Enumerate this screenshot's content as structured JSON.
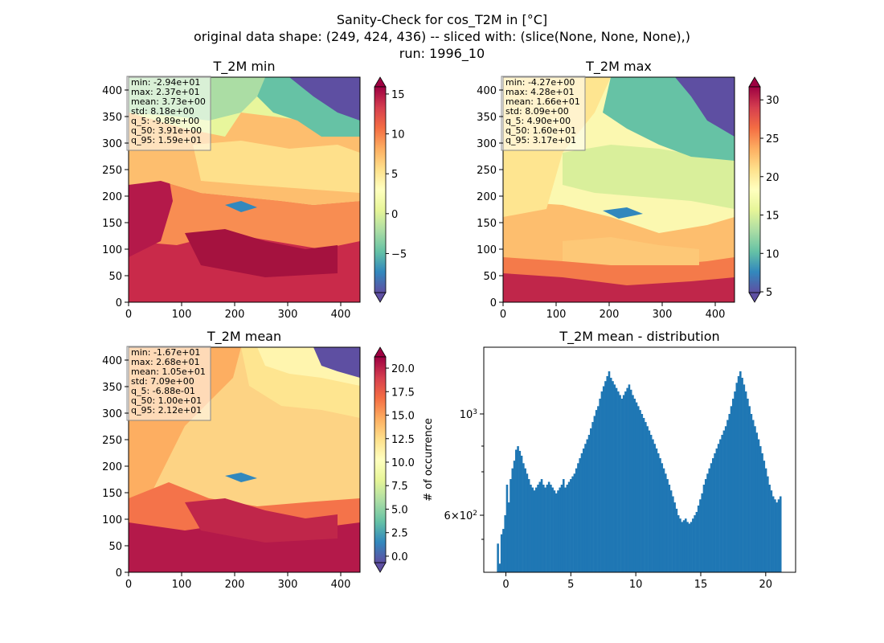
{
  "figure": {
    "suptitle_lines": [
      "Sanity-Check for cos_T2M in [°C]",
      "original data shape: (249, 424, 436) -- sliced with: (slice(None, None, None),)",
      "run: 1996_10"
    ]
  },
  "chart_data": [
    {
      "type": "heatmap",
      "title": "T_2M min",
      "xlim": [
        0,
        436
      ],
      "ylim": [
        0,
        424
      ],
      "xticks": [
        "0",
        "100",
        "200",
        "300",
        "400"
      ],
      "yticks": [
        "0",
        "50",
        "100",
        "150",
        "200",
        "250",
        "300",
        "350",
        "400"
      ],
      "colormap": "Spectral_r",
      "colorbar": {
        "range": [
          -9.89,
          15.9
        ],
        "ticks": [
          "−5",
          "0",
          "5",
          "10",
          "15"
        ],
        "tick_values": [
          -5,
          0,
          5,
          10,
          15
        ],
        "extend": "both"
      },
      "stats": [
        "min: -2.94e+01",
        "max: 2.37e+01",
        "mean: 3.73e+00",
        "std: 8.18e+00",
        "q_5: -9.89e+00",
        "q_50: 3.91e+00",
        "q_95: 1.59e+01"
      ]
    },
    {
      "type": "heatmap",
      "title": "T_2M max",
      "xlim": [
        0,
        436
      ],
      "ylim": [
        0,
        424
      ],
      "xticks": [
        "0",
        "100",
        "200",
        "300",
        "400"
      ],
      "yticks": [
        "0",
        "50",
        "100",
        "150",
        "200",
        "250",
        "300",
        "350",
        "400"
      ],
      "colormap": "Spectral_r",
      "colorbar": {
        "range": [
          4.9,
          31.7
        ],
        "ticks": [
          "5",
          "10",
          "15",
          "20",
          "25",
          "30"
        ],
        "tick_values": [
          5,
          10,
          15,
          20,
          25,
          30
        ],
        "extend": "both"
      },
      "stats": [
        "min: -4.27e+00",
        "max: 4.28e+01",
        "mean: 1.66e+01",
        "std: 8.09e+00",
        "q_5: 4.90e+00",
        "q_50: 1.60e+01",
        "q_95: 3.17e+01"
      ]
    },
    {
      "type": "heatmap",
      "title": "T_2M mean",
      "xlim": [
        0,
        436
      ],
      "ylim": [
        0,
        424
      ],
      "xticks": [
        "0",
        "100",
        "200",
        "300",
        "400"
      ],
      "yticks": [
        "0",
        "50",
        "100",
        "150",
        "200",
        "250",
        "300",
        "350",
        "400"
      ],
      "colormap": "Spectral_r",
      "colorbar": {
        "range": [
          -0.688,
          21.2
        ],
        "ticks": [
          "0.0",
          "2.5",
          "5.0",
          "7.5",
          "10.0",
          "12.5",
          "15.0",
          "17.5",
          "20.0"
        ],
        "tick_values": [
          0,
          2.5,
          5,
          7.5,
          10,
          12.5,
          15,
          17.5,
          20
        ],
        "extend": "both"
      },
      "stats": [
        "min: -1.67e+01",
        "max: 2.68e+01",
        "mean: 1.05e+01",
        "std: 7.09e+00",
        "q_5: -6.88e-01",
        "q_50: 1.00e+01",
        "q_95: 2.12e+01"
      ]
    },
    {
      "type": "bar",
      "title": "T_2M mean - distribution",
      "ylabel": "# of occurrence",
      "y_scale": "log",
      "xlim": [
        -1.7,
        22.3
      ],
      "ylim": [
        450,
        1400
      ],
      "xticks": [
        "0",
        "5",
        "10",
        "15",
        "20"
      ],
      "xtick_values": [
        0,
        5,
        10,
        15,
        20
      ],
      "ytick_labels": [
        "10^3",
        "6×10^2"
      ],
      "ytick_values": [
        1000,
        600
      ],
      "color": "#1f77b4",
      "bin_range": [
        -0.69,
        21.2
      ],
      "values": [
        520,
        470,
        545,
        560,
        600,
        700,
        640,
        720,
        760,
        790,
        835,
        850,
        830,
        810,
        780,
        760,
        740,
        720,
        700,
        690,
        680,
        690,
        700,
        710,
        720,
        700,
        690,
        700,
        710,
        700,
        690,
        680,
        670,
        680,
        690,
        700,
        720,
        690,
        700,
        710,
        720,
        730,
        740,
        760,
        780,
        800,
        820,
        840,
        860,
        880,
        900,
        930,
        960,
        990,
        1020,
        1040,
        1080,
        1120,
        1150,
        1180,
        1210,
        1240,
        1200,
        1180,
        1160,
        1140,
        1120,
        1100,
        1080,
        1100,
        1120,
        1140,
        1160,
        1130,
        1100,
        1080,
        1060,
        1040,
        1020,
        1000,
        980,
        960,
        940,
        920,
        900,
        880,
        860,
        840,
        820,
        800,
        780,
        760,
        740,
        720,
        700,
        680,
        660,
        640,
        620,
        600,
        590,
        580,
        585,
        590,
        580,
        575,
        580,
        590,
        600,
        610,
        630,
        650,
        670,
        700,
        720,
        740,
        760,
        780,
        800,
        820,
        840,
        860,
        880,
        900,
        920,
        940,
        970,
        1000,
        1040,
        1080,
        1120,
        1170,
        1210,
        1240,
        1200,
        1160,
        1120,
        1080,
        1040,
        1000,
        970,
        940,
        910,
        880,
        850,
        820,
        790,
        760,
        730,
        700,
        680,
        660,
        650,
        640,
        650,
        660
      ]
    }
  ]
}
